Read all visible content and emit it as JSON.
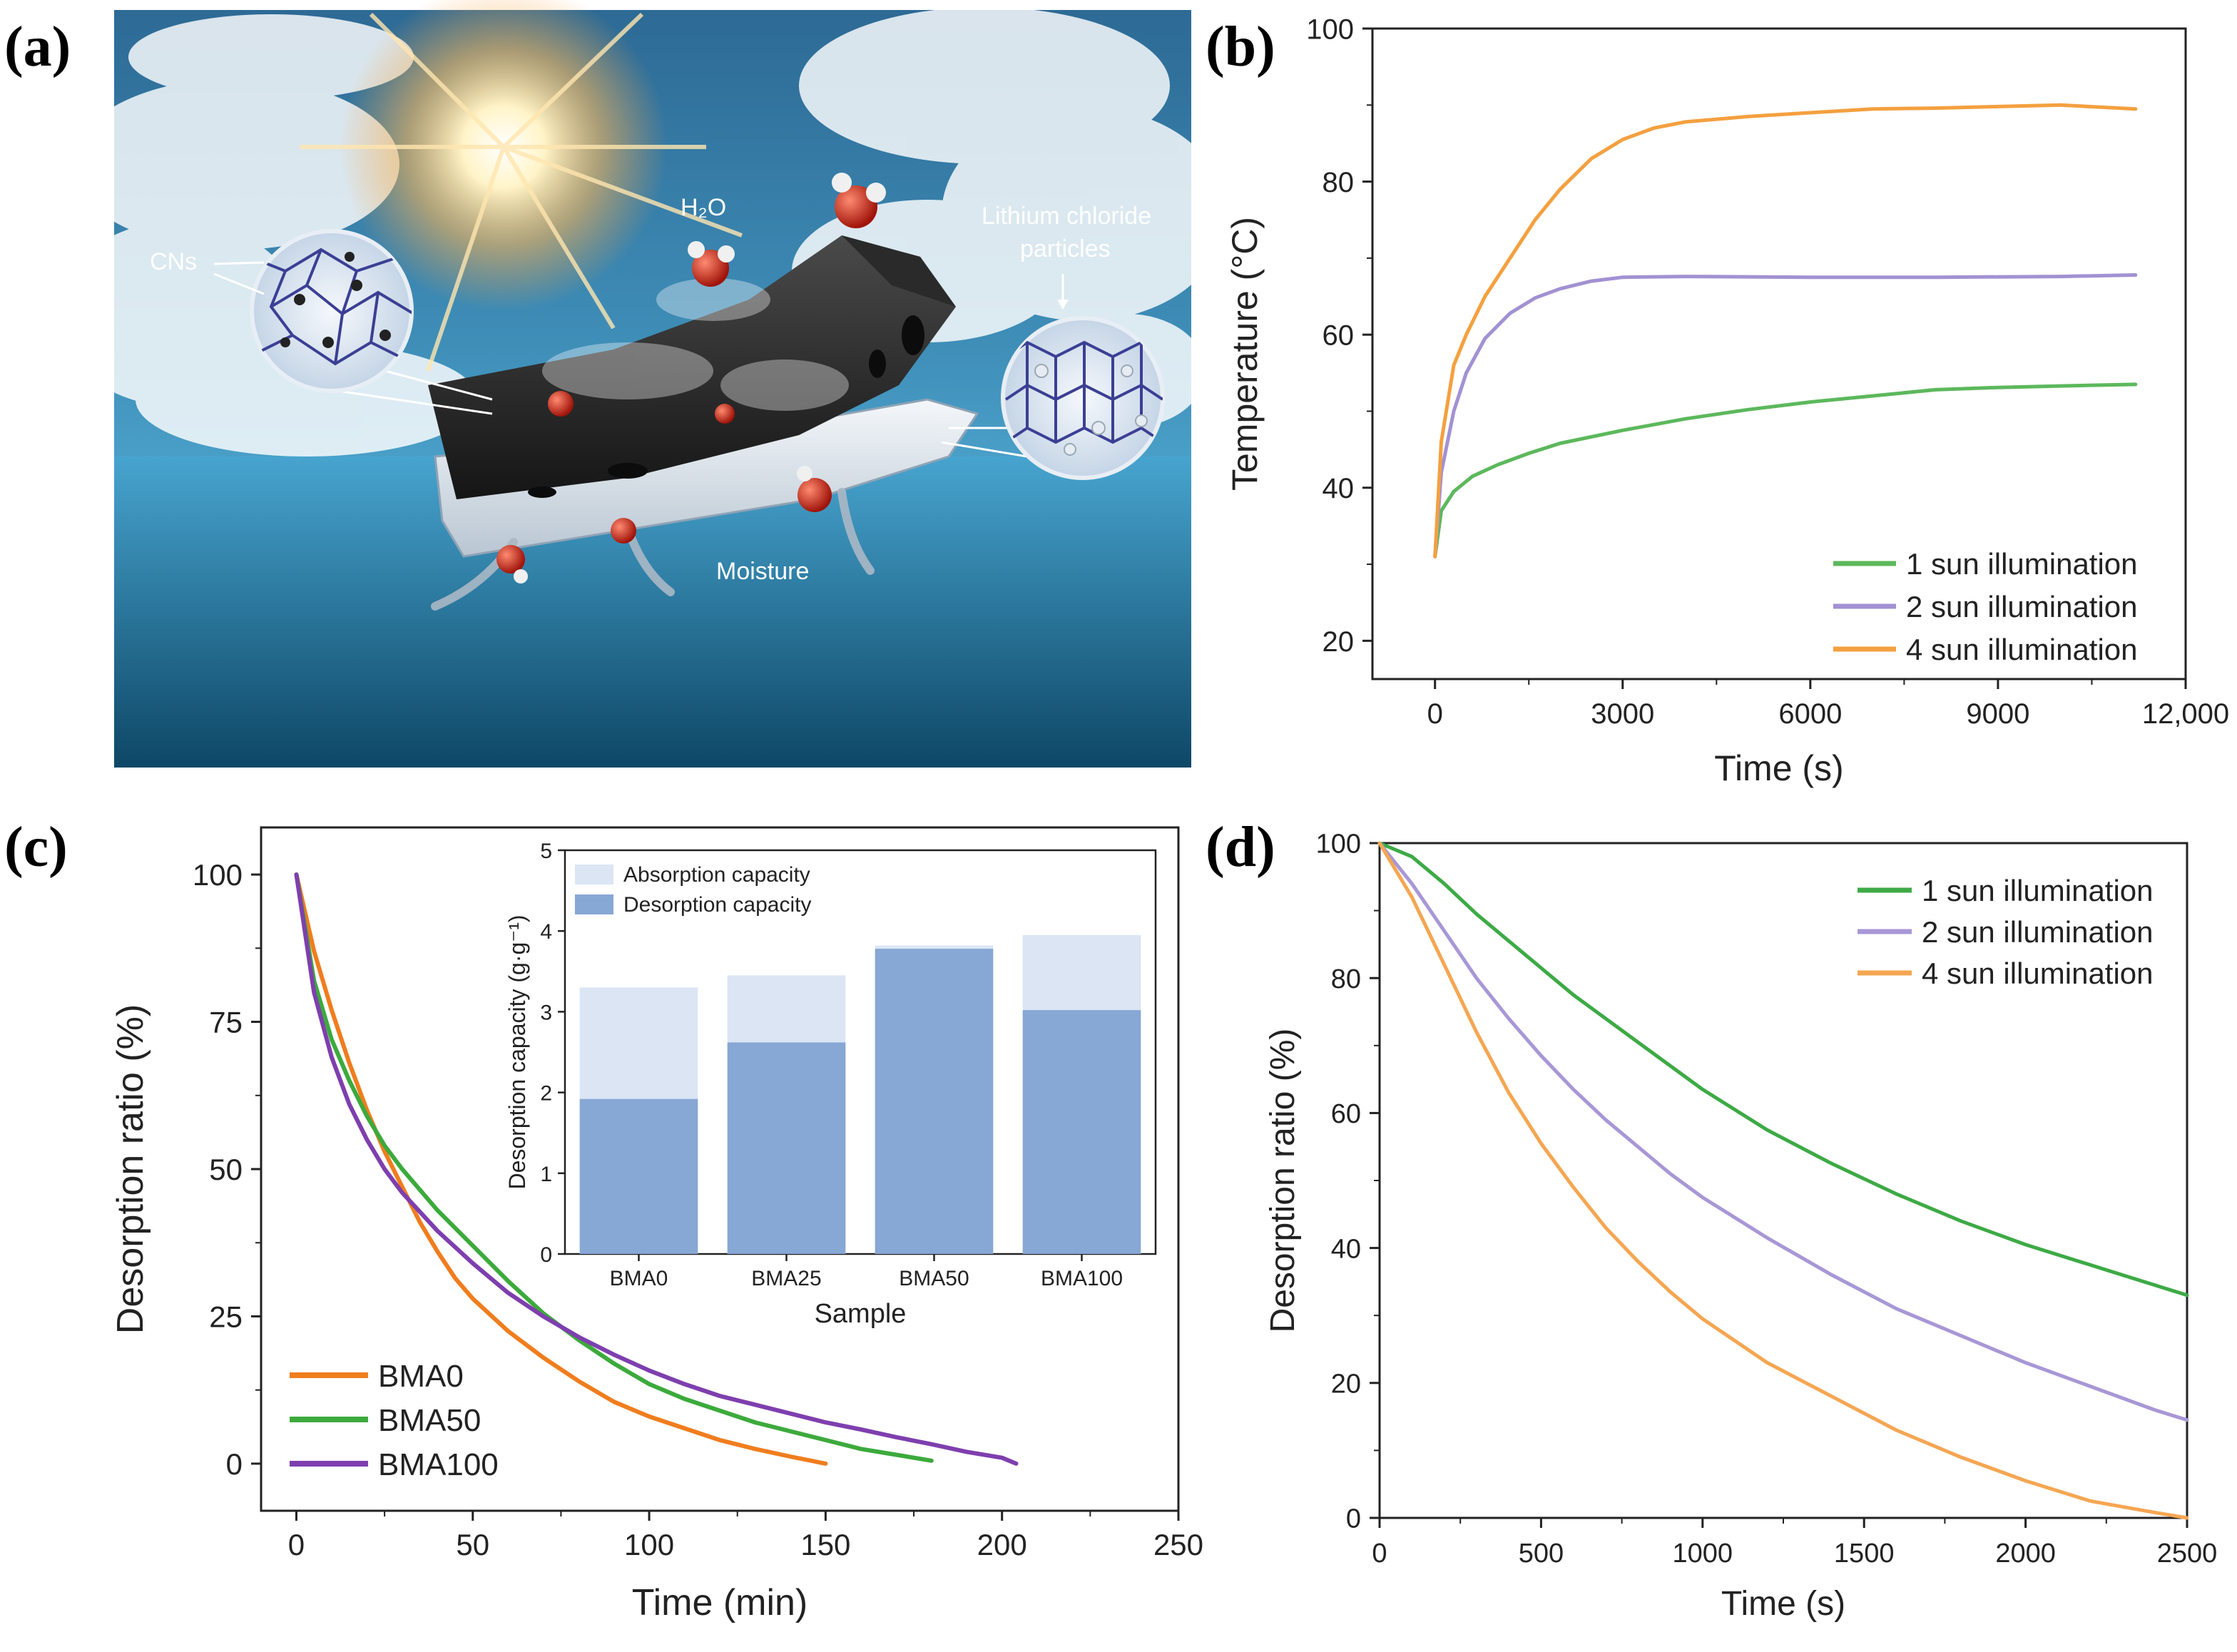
{
  "figure": {
    "panel_labels": [
      "(a)",
      "(b)",
      "(c)",
      "(d)"
    ],
    "illustration_labels": {
      "h2o": "H₂O",
      "cns": "CNs",
      "licl_line1": "Lithium chloride",
      "licl_line2": "particles",
      "moisture": "Moisture"
    }
  },
  "chart_data": [
    {
      "id": "b",
      "type": "line",
      "xlabel": "Time (s)",
      "ylabel": "Temperature (°C)",
      "xlim": [
        -1000,
        12000
      ],
      "ylim": [
        15,
        100
      ],
      "xticks": [
        0,
        3000,
        6000,
        9000,
        12000
      ],
      "xtick_labels": [
        "0",
        "3000",
        "6000",
        "9000",
        "12,000"
      ],
      "yticks": [
        20,
        40,
        60,
        80,
        100
      ],
      "ytick_labels": [
        "20",
        "40",
        "60",
        "80",
        "100"
      ],
      "legend_position": "bottom-right",
      "series": [
        {
          "name": "1 sun illumination",
          "color": "#5cb85c",
          "points": [
            [
              0,
              31
            ],
            [
              100,
              37
            ],
            [
              300,
              39.5
            ],
            [
              600,
              41.5
            ],
            [
              1000,
              43
            ],
            [
              1500,
              44.5
            ],
            [
              2000,
              45.8
            ],
            [
              3000,
              47.5
            ],
            [
              4000,
              49
            ],
            [
              5000,
              50.2
            ],
            [
              6000,
              51.2
            ],
            [
              7000,
              52
            ],
            [
              8000,
              52.8
            ],
            [
              9000,
              53.1
            ],
            [
              10000,
              53.3
            ],
            [
              11200,
              53.5
            ]
          ]
        },
        {
          "name": "2 sun illumination",
          "color": "#a291d2",
          "points": [
            [
              0,
              31
            ],
            [
              100,
              42
            ],
            [
              300,
              50
            ],
            [
              500,
              55
            ],
            [
              800,
              59.5
            ],
            [
              1200,
              62.8
            ],
            [
              1600,
              64.8
            ],
            [
              2000,
              66
            ],
            [
              2500,
              67
            ],
            [
              3000,
              67.5
            ],
            [
              4000,
              67.6
            ],
            [
              6000,
              67.5
            ],
            [
              8000,
              67.5
            ],
            [
              10000,
              67.6
            ],
            [
              11200,
              67.8
            ]
          ]
        },
        {
          "name": "4 sun illumination",
          "color": "#f4a03f",
          "points": [
            [
              0,
              31
            ],
            [
              100,
              46
            ],
            [
              300,
              56
            ],
            [
              500,
              60
            ],
            [
              800,
              65
            ],
            [
              1200,
              70
            ],
            [
              1600,
              75
            ],
            [
              2000,
              79
            ],
            [
              2500,
              83
            ],
            [
              3000,
              85.5
            ],
            [
              3500,
              87
            ],
            [
              4000,
              87.8
            ],
            [
              5000,
              88.5
            ],
            [
              6000,
              89
            ],
            [
              7000,
              89.5
            ],
            [
              8000,
              89.6
            ],
            [
              9000,
              89.8
            ],
            [
              10000,
              90
            ],
            [
              11200,
              89.5
            ]
          ]
        }
      ]
    },
    {
      "id": "c",
      "type": "line",
      "xlabel": "Time (min)",
      "ylabel": "Desorption ratio (%)",
      "xlim": [
        -10,
        250
      ],
      "ylim": [
        -8,
        108
      ],
      "xticks": [
        0,
        50,
        100,
        150,
        200,
        250
      ],
      "xtick_labels": [
        "0",
        "50",
        "100",
        "150",
        "200",
        "250"
      ],
      "yticks": [
        0,
        25,
        50,
        75,
        100
      ],
      "ytick_labels": [
        "0",
        "25",
        "50",
        "75",
        "100"
      ],
      "legend_position": "bottom-left",
      "series": [
        {
          "name": "BMA0",
          "color": "#f07d1e",
          "points": [
            [
              0,
              100
            ],
            [
              5,
              87
            ],
            [
              10,
              77
            ],
            [
              15,
              68
            ],
            [
              20,
              60
            ],
            [
              25,
              53
            ],
            [
              30,
              47
            ],
            [
              35,
              41
            ],
            [
              40,
              36
            ],
            [
              45,
              31.5
            ],
            [
              50,
              28
            ],
            [
              60,
              22.5
            ],
            [
              70,
              18
            ],
            [
              80,
              14
            ],
            [
              90,
              10.5
            ],
            [
              100,
              8
            ],
            [
              110,
              6
            ],
            [
              120,
              4
            ],
            [
              130,
              2.5
            ],
            [
              140,
              1.2
            ],
            [
              150,
              0
            ]
          ]
        },
        {
          "name": "BMA50",
          "color": "#3caa3c",
          "points": [
            [
              0,
              100
            ],
            [
              5,
              82
            ],
            [
              10,
              72
            ],
            [
              15,
              65
            ],
            [
              20,
              59
            ],
            [
              25,
              54
            ],
            [
              30,
              50
            ],
            [
              40,
              43
            ],
            [
              50,
              37
            ],
            [
              60,
              31
            ],
            [
              70,
              25.5
            ],
            [
              80,
              21
            ],
            [
              90,
              17
            ],
            [
              100,
              13.5
            ],
            [
              110,
              11
            ],
            [
              120,
              9
            ],
            [
              130,
              7
            ],
            [
              140,
              5.5
            ],
            [
              150,
              4
            ],
            [
              160,
              2.5
            ],
            [
              170,
              1.5
            ],
            [
              180,
              0.5
            ]
          ]
        },
        {
          "name": "BMA100",
          "color": "#7e3fae",
          "points": [
            [
              0,
              100
            ],
            [
              5,
              80
            ],
            [
              10,
              69
            ],
            [
              15,
              61
            ],
            [
              20,
              55
            ],
            [
              25,
              50
            ],
            [
              30,
              46
            ],
            [
              40,
              39.5
            ],
            [
              50,
              34
            ],
            [
              60,
              29
            ],
            [
              70,
              25
            ],
            [
              80,
              21.5
            ],
            [
              90,
              18.5
            ],
            [
              100,
              15.8
            ],
            [
              110,
              13.5
            ],
            [
              120,
              11.5
            ],
            [
              130,
              10
            ],
            [
              140,
              8.5
            ],
            [
              150,
              7
            ],
            [
              160,
              5.8
            ],
            [
              170,
              4.5
            ],
            [
              180,
              3.3
            ],
            [
              190,
              2
            ],
            [
              200,
              1
            ],
            [
              204,
              0
            ]
          ]
        }
      ],
      "inset": {
        "type": "bar",
        "xlabel": "Sample",
        "ylabel": "Desorption capacity (g·g⁻¹)",
        "ylim": [
          0,
          5
        ],
        "yticks": [
          0,
          1,
          2,
          3,
          4,
          5
        ],
        "ytick_labels": [
          "0",
          "1",
          "2",
          "3",
          "4",
          "5"
        ],
        "categories": [
          "BMA0",
          "BMA25",
          "BMA50",
          "BMA100"
        ],
        "legend_position": "top-left",
        "series": [
          {
            "name": "Absorption capacity",
            "color": "#dbe5f4",
            "values": [
              3.3,
              3.45,
              3.82,
              3.95
            ]
          },
          {
            "name": "Desorption capacity",
            "color": "#87a7d4",
            "values": [
              1.92,
              2.62,
              3.78,
              3.02
            ]
          }
        ]
      }
    },
    {
      "id": "d",
      "type": "line",
      "xlabel": "Time (s)",
      "ylabel": "Desorption ratio (%)",
      "xlim": [
        0,
        2500
      ],
      "ylim": [
        0,
        100
      ],
      "xticks": [
        0,
        500,
        1000,
        1500,
        2000,
        2500
      ],
      "xtick_labels": [
        "0",
        "500",
        "1000",
        "1500",
        "2000",
        "2500"
      ],
      "yticks": [
        0,
        20,
        40,
        60,
        80,
        100
      ],
      "ytick_labels": [
        "0",
        "20",
        "40",
        "60",
        "80",
        "100"
      ],
      "legend_position": "top-right",
      "series": [
        {
          "name": "1 sun illumination",
          "color": "#3daa45",
          "points": [
            [
              0,
              100
            ],
            [
              100,
              98
            ],
            [
              200,
              94
            ],
            [
              300,
              89.5
            ],
            [
              400,
              85.5
            ],
            [
              500,
              81.5
            ],
            [
              600,
              77.5
            ],
            [
              700,
              74
            ],
            [
              800,
              70.5
            ],
            [
              900,
              67
            ],
            [
              1000,
              63.5
            ],
            [
              1200,
              57.5
            ],
            [
              1400,
              52.5
            ],
            [
              1600,
              48
            ],
            [
              1800,
              44
            ],
            [
              2000,
              40.5
            ],
            [
              2200,
              37.5
            ],
            [
              2400,
              34.5
            ],
            [
              2500,
              33
            ]
          ]
        },
        {
          "name": "2 sun illumination",
          "color": "#a897d6",
          "points": [
            [
              0,
              100
            ],
            [
              100,
              94
            ],
            [
              200,
              87
            ],
            [
              300,
              80
            ],
            [
              400,
              74
            ],
            [
              500,
              68.5
            ],
            [
              600,
              63.5
            ],
            [
              700,
              59
            ],
            [
              800,
              55
            ],
            [
              900,
              51
            ],
            [
              1000,
              47.5
            ],
            [
              1200,
              41.5
            ],
            [
              1400,
              36
            ],
            [
              1600,
              31
            ],
            [
              1800,
              27
            ],
            [
              2000,
              23
            ],
            [
              2200,
              19.5
            ],
            [
              2400,
              16
            ],
            [
              2500,
              14.5
            ]
          ]
        },
        {
          "name": "4 sun illumination",
          "color": "#f5a652",
          "points": [
            [
              0,
              100
            ],
            [
              100,
              92
            ],
            [
              200,
              82
            ],
            [
              300,
              72
            ],
            [
              400,
              63
            ],
            [
              500,
              55.5
            ],
            [
              600,
              49
            ],
            [
              700,
              43
            ],
            [
              800,
              38
            ],
            [
              900,
              33.5
            ],
            [
              1000,
              29.5
            ],
            [
              1200,
              23
            ],
            [
              1400,
              18
            ],
            [
              1600,
              13
            ],
            [
              1800,
              9
            ],
            [
              2000,
              5.5
            ],
            [
              2200,
              2.5
            ],
            [
              2400,
              0.8
            ],
            [
              2500,
              0
            ]
          ]
        }
      ]
    }
  ]
}
